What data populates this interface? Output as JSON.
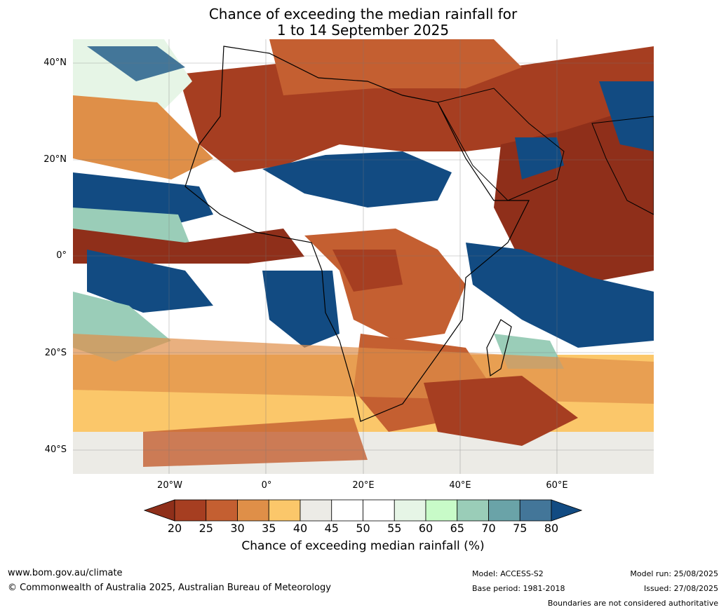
{
  "title": {
    "line1": "Chance of exceeding the median rainfall for",
    "line2": "1 to 14 September 2025"
  },
  "map": {
    "lat_labels": [
      "40°N",
      "20°N",
      "0°",
      "20°S",
      "40°S"
    ],
    "lon_labels": [
      "20°W",
      "0°",
      "20°E",
      "40°E",
      "60°E"
    ]
  },
  "colorbar": {
    "ticks": [
      "20",
      "25",
      "30",
      "35",
      "40",
      "45",
      "50",
      "55",
      "60",
      "65",
      "70",
      "75",
      "80"
    ],
    "colors": [
      "#8f2f1a",
      "#a63e21",
      "#c45f31",
      "#df8f48",
      "#fbc76a",
      "#ecebe6",
      "#ffffff",
      "#ffffff",
      "#e6f5e6",
      "#c8fbc8",
      "#9acdb8",
      "#6aa3a8",
      "#437699",
      "#124b82"
    ],
    "label": "Chance of exceeding median rainfall (%)"
  },
  "footer": {
    "website": "www.bom.gov.au/climate",
    "copyright": "© Commonwealth of Australia 2025, Australian Bureau of Meteorology",
    "model": "Model: ACCESS-S2",
    "base_period": "Base period: 1981-2018",
    "model_run": "Model run: 25/08/2025",
    "issued": "Issued: 27/08/2025",
    "disclaimer": "Boundaries are not considered authoritative"
  }
}
